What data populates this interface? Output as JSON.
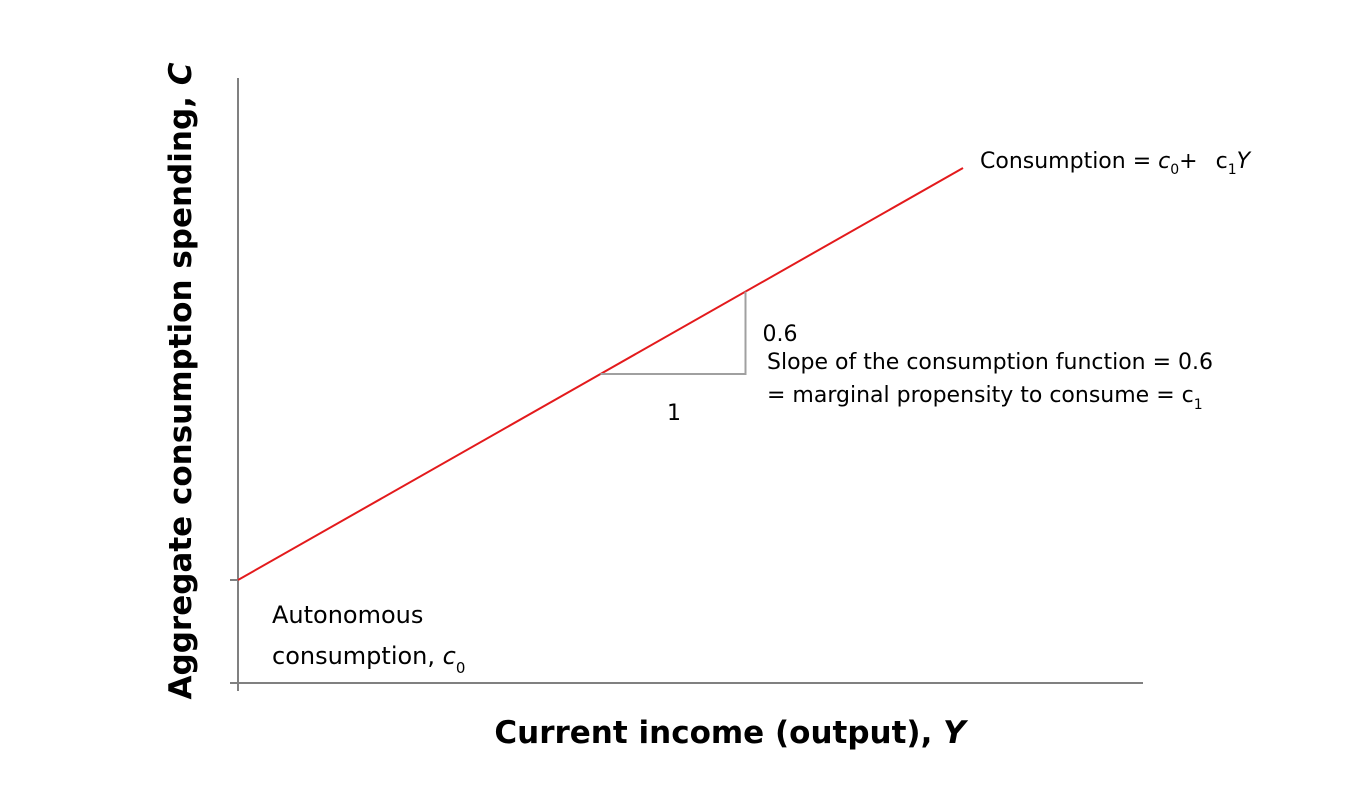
{
  "chart_data": {
    "type": "line",
    "xlabel": "Current income (output), ",
    "xlabel_var": "Y",
    "ylabel": "Aggregate consumption spending, ",
    "ylabel_var": "C",
    "xlim": [
      0,
      1
    ],
    "ylim": [
      0,
      1
    ],
    "intercept": 0.15,
    "slope": 0.6,
    "x": [
      0,
      1
    ],
    "series": [
      {
        "values": [
          0.15,
          0.75
        ],
        "color": "#e31a1c"
      }
    ],
    "slope_triangle": {
      "x_start": 0.5,
      "run": 0.2,
      "run_label": "1",
      "rise_label": "0.6"
    },
    "annotations": {
      "line_label": {
        "prefix": "Consumption = ",
        "c_var": "c",
        "sub0": "0",
        "plus": "+  ",
        "sub1": "1",
        "y_var": "Y"
      },
      "slope_note": {
        "line1": "Slope of the consumption function = 0.6",
        "line2_prefix": "= marginal propensity to consume = ",
        "c_var": "c",
        "sub": "1"
      },
      "autonomous": {
        "line1": "Autonomous",
        "line2_prefix": "consumption, ",
        "c_var": "c",
        "sub": "0"
      }
    },
    "colors": {
      "axis": "#808080",
      "line": "#e31a1c",
      "triangle": "#a0a0a0"
    }
  }
}
